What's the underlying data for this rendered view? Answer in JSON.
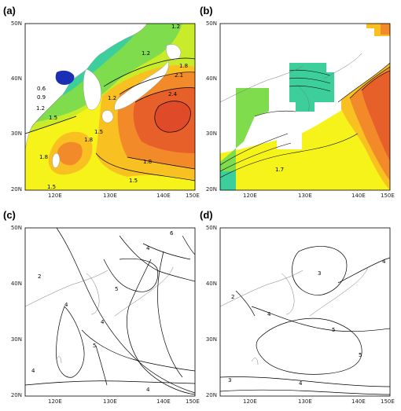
{
  "panels": [
    {
      "label": "(a)",
      "type": "filled-contour"
    },
    {
      "label": "(b)",
      "type": "filled-contour-masked"
    },
    {
      "label": "(c)",
      "type": "line-contour"
    },
    {
      "label": "(d)",
      "type": "line-contour"
    }
  ],
  "axes": {
    "x_ticks": [
      "120E",
      "130E",
      "140E",
      "150E"
    ],
    "y_ticks": [
      "20N",
      "30N",
      "40N",
      "50N"
    ]
  },
  "contour_labels": {
    "a": [
      "1.2",
      "1.2",
      "1.8",
      "2.1",
      "2.4",
      "0.6",
      "0.9",
      "1.2",
      "1.5",
      "1.5",
      "1.2",
      "1.8",
      "1.8",
      "1.8",
      "1.5",
      "1.5"
    ],
    "b": [
      "1.7"
    ],
    "c": [
      "6",
      "4",
      "5",
      "2",
      "4",
      "4",
      "5",
      "4",
      "4"
    ],
    "d": [
      "3",
      "2",
      "4",
      "4",
      "5",
      "5",
      "4",
      "3"
    ]
  },
  "colors": {
    "land": "#ffffff",
    "dark_blue": "#1a2fb4",
    "blue": "#2d6fe0",
    "cyan": "#1fc0d8",
    "teal": "#3ccf9c",
    "green": "#7fdc4c",
    "yellow_green": "#c9ec2a",
    "yellow": "#f6f31a",
    "gold": "#f8c020",
    "orange": "#f28a2a",
    "dark_orange": "#e7602a",
    "red_orange": "#df4a28"
  }
}
